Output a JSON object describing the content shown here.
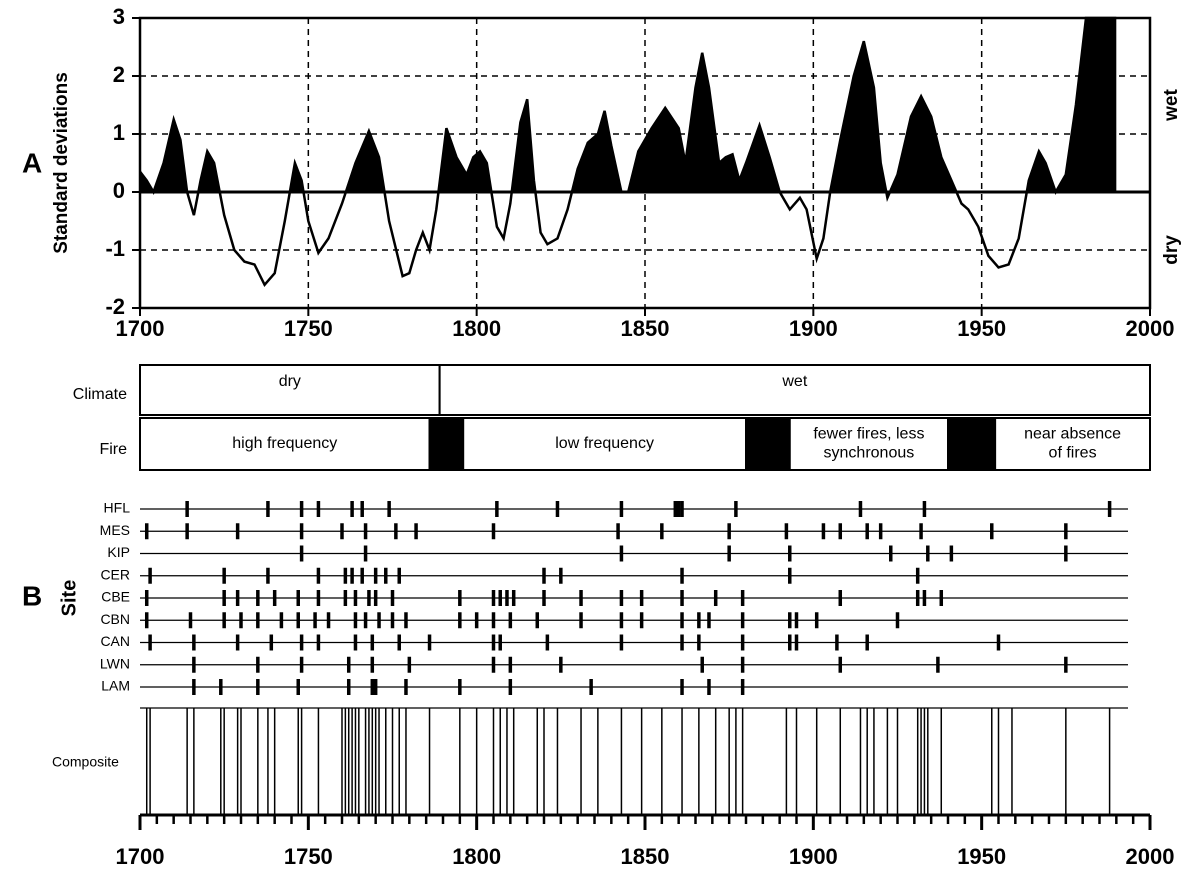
{
  "chart_data": [
    {
      "type": "line",
      "panel": "A",
      "ylabel": "Standard deviations",
      "wet_label": "wet",
      "dry_label": "dry",
      "color": "#000000",
      "xlim": [
        1700,
        2000
      ],
      "xticks": [
        1700,
        1750,
        1800,
        1850,
        1900,
        1950,
        2000
      ],
      "ylim": [
        -2,
        3
      ],
      "yticks": [
        -2,
        -1,
        0,
        1,
        2,
        3
      ],
      "grid": true,
      "x": [
        1700,
        1702,
        1704,
        1707,
        1710,
        1712,
        1714,
        1716,
        1718,
        1720,
        1722,
        1725,
        1728,
        1731,
        1734,
        1737,
        1740,
        1743,
        1746,
        1748,
        1750,
        1753,
        1756,
        1760,
        1764,
        1768,
        1771,
        1774,
        1778,
        1780,
        1782,
        1784,
        1786,
        1788,
        1791,
        1794,
        1797,
        1799,
        1801,
        1803,
        1806,
        1808,
        1810,
        1813,
        1815,
        1817,
        1819,
        1821,
        1824,
        1827,
        1830,
        1833,
        1836,
        1838,
        1840,
        1843,
        1845,
        1848,
        1852,
        1856,
        1860,
        1862,
        1865,
        1867,
        1869,
        1872,
        1874,
        1876,
        1878,
        1880,
        1884,
        1887,
        1890,
        1893,
        1896,
        1898,
        1901,
        1903,
        1905,
        1908,
        1912,
        1915,
        1918,
        1920,
        1922,
        1925,
        1929,
        1932,
        1935,
        1938,
        1941,
        1944,
        1946,
        1949,
        1952,
        1955,
        1958,
        1961,
        1964,
        1967,
        1969,
        1972,
        1975,
        1978,
        1981,
        1990
      ],
      "series": [
        {
          "values": [
            0.35,
            0.2,
            0.0,
            0.5,
            1.25,
            0.9,
            0.0,
            -0.4,
            0.2,
            0.7,
            0.5,
            -0.4,
            -1.0,
            -1.2,
            -1.25,
            -1.6,
            -1.4,
            -0.5,
            0.5,
            0.2,
            -0.5,
            -1.05,
            -0.8,
            -0.2,
            0.5,
            1.05,
            0.6,
            -0.5,
            -1.45,
            -1.4,
            -1.0,
            -0.7,
            -1.0,
            -0.3,
            1.1,
            0.6,
            0.3,
            0.6,
            0.7,
            0.5,
            -0.6,
            -0.8,
            -0.2,
            1.2,
            1.6,
            0.2,
            -0.7,
            -0.9,
            -0.8,
            -0.3,
            0.4,
            0.85,
            1.0,
            1.4,
            0.8,
            0.0,
            0.0,
            0.7,
            1.1,
            1.45,
            1.1,
            0.5,
            1.8,
            2.4,
            1.8,
            0.5,
            0.6,
            0.65,
            0.2,
            0.5,
            1.15,
            0.6,
            0.0,
            -0.3,
            -0.1,
            -0.3,
            -1.15,
            -0.8,
            0.0,
            0.9,
            2.0,
            2.6,
            1.8,
            0.5,
            -0.1,
            0.3,
            1.3,
            1.65,
            1.3,
            0.6,
            0.2,
            -0.2,
            -0.3,
            -0.6,
            -1.1,
            -1.3,
            -1.25,
            -0.8,
            0.2,
            0.7,
            0.5,
            0.0,
            0.3,
            1.5,
            3.0,
            3.0
          ]
        }
      ]
    },
    {
      "type": "periods",
      "climate_label": "Climate",
      "fire_label": "Fire",
      "climate": [
        {
          "label": [
            "dry"
          ],
          "start": 1700,
          "end": 1789
        },
        {
          "label": [
            "wet"
          ],
          "start": 1789,
          "end": 2000
        }
      ],
      "fire": [
        {
          "label": [
            "high frequency"
          ],
          "start": 1700,
          "end": 1786
        },
        {
          "label": null,
          "start": 1786,
          "end": 1796
        },
        {
          "label": [
            "low frequency"
          ],
          "start": 1796,
          "end": 1880
        },
        {
          "label": null,
          "start": 1880,
          "end": 1893
        },
        {
          "label": [
            "fewer fires, less",
            "synchronous"
          ],
          "start": 1893,
          "end": 1940
        },
        {
          "label": null,
          "start": 1940,
          "end": 1954
        },
        {
          "label": [
            "near absence",
            "of fires"
          ],
          "start": 1954,
          "end": 2000
        }
      ]
    },
    {
      "type": "fire-scar",
      "panel": "B",
      "ylabel": "Site",
      "composite_label": "Composite",
      "xlim": [
        1700,
        2000
      ],
      "xticks": [
        1700,
        1750,
        1800,
        1850,
        1900,
        1950,
        2000
      ],
      "minor_xticks": [
        1705,
        1710,
        1715,
        1720,
        1725,
        1730,
        1735,
        1740,
        1745,
        1755,
        1760,
        1765,
        1770,
        1775,
        1780,
        1785,
        1790,
        1795,
        1805,
        1810,
        1815,
        1820,
        1825,
        1830,
        1835,
        1840,
        1845,
        1855,
        1860,
        1865,
        1870,
        1875,
        1880,
        1885,
        1890,
        1895,
        1905,
        1910,
        1915,
        1920,
        1925,
        1930,
        1935,
        1940,
        1945,
        1955,
        1960,
        1965,
        1970,
        1975,
        1980,
        1985,
        1990,
        1995
      ],
      "sites": [
        {
          "name": "HFL",
          "years": [
            1714,
            1738,
            1748,
            1753,
            1763,
            1766,
            1774,
            1806,
            1824,
            1843,
            1859,
            1860,
            1861,
            1877,
            1914,
            1933,
            1988
          ]
        },
        {
          "name": "MES",
          "years": [
            1702,
            1714,
            1729,
            1748,
            1760,
            1767,
            1776,
            1782,
            1805,
            1842,
            1855,
            1875,
            1892,
            1903,
            1908,
            1916,
            1920,
            1932,
            1953,
            1975
          ]
        },
        {
          "name": "KIP",
          "years": [
            1748,
            1767,
            1843,
            1875,
            1893,
            1923,
            1934,
            1941,
            1975
          ]
        },
        {
          "name": "CER",
          "years": [
            1703,
            1725,
            1738,
            1753,
            1761,
            1763,
            1766,
            1770,
            1773,
            1777,
            1820,
            1825,
            1861,
            1893,
            1931
          ]
        },
        {
          "name": "CBE",
          "years": [
            1702,
            1725,
            1729,
            1735,
            1740,
            1747,
            1753,
            1761,
            1764,
            1768,
            1770,
            1775,
            1795,
            1805,
            1807,
            1809,
            1811,
            1820,
            1831,
            1843,
            1849,
            1861,
            1871,
            1879,
            1908,
            1931,
            1933,
            1938
          ]
        },
        {
          "name": "CBN",
          "years": [
            1702,
            1715,
            1725,
            1730,
            1735,
            1742,
            1747,
            1752,
            1756,
            1764,
            1767,
            1771,
            1775,
            1779,
            1795,
            1800,
            1805,
            1810,
            1818,
            1831,
            1843,
            1849,
            1861,
            1866,
            1869,
            1879,
            1893,
            1895,
            1901,
            1925
          ]
        },
        {
          "name": "CAN",
          "years": [
            1703,
            1716,
            1729,
            1739,
            1748,
            1753,
            1764,
            1769,
            1777,
            1786,
            1805,
            1807,
            1821,
            1843,
            1861,
            1866,
            1879,
            1893,
            1895,
            1907,
            1916,
            1955
          ]
        },
        {
          "name": "LWN",
          "years": [
            1716,
            1735,
            1748,
            1762,
            1769,
            1780,
            1805,
            1810,
            1825,
            1867,
            1879,
            1908,
            1937,
            1975
          ]
        },
        {
          "name": "LAM",
          "years": [
            1716,
            1724,
            1735,
            1747,
            1762,
            1769,
            1770,
            1779,
            1795,
            1810,
            1834,
            1861,
            1869,
            1879
          ]
        }
      ],
      "composite": [
        1702,
        1703,
        1714,
        1716,
        1724,
        1725,
        1729,
        1730,
        1735,
        1738,
        1740,
        1747,
        1748,
        1753,
        1760,
        1761,
        1762,
        1763,
        1764,
        1765,
        1767,
        1768,
        1769,
        1770,
        1771,
        1773,
        1775,
        1777,
        1779,
        1786,
        1795,
        1800,
        1805,
        1807,
        1809,
        1811,
        1818,
        1820,
        1824,
        1831,
        1836,
        1843,
        1849,
        1855,
        1861,
        1866,
        1871,
        1875,
        1877,
        1879,
        1892,
        1895,
        1901,
        1908,
        1914,
        1916,
        1918,
        1922,
        1925,
        1931,
        1932,
        1933,
        1934,
        1938,
        1953,
        1955,
        1959,
        1975,
        1988
      ]
    }
  ]
}
